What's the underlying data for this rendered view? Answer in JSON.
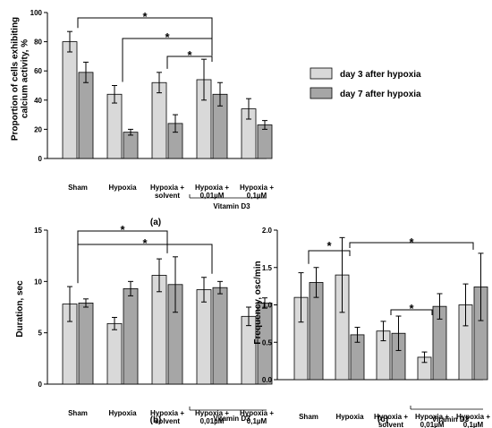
{
  "colors": {
    "day3": "#d9d9d9",
    "day7": "#a6a6a6",
    "axis": "#000000",
    "ink": "#000000"
  },
  "legend": {
    "items": [
      "day 3 after hypoxia",
      "day 7 after hypoxia"
    ]
  },
  "chart_data": [
    {
      "panel_label": "(a)",
      "type": "bar",
      "ylabel_lines": [
        "Proportion of cells exhibiting",
        "calcium activity, %"
      ],
      "ylim": [
        0,
        100
      ],
      "yticks": [
        "0",
        "20",
        "40",
        "60",
        "80",
        "100"
      ],
      "tick_values": [
        0,
        20,
        40,
        60,
        80,
        100
      ],
      "categories": [
        [
          "Sham"
        ],
        [
          "Hypoxia"
        ],
        [
          "Hypoxia +",
          "solvent"
        ],
        [
          "Hypoxia +",
          "0,01µM"
        ],
        [
          "Hypoxia +",
          "0,1µM"
        ]
      ],
      "group_label": "Vitamin D3",
      "series": [
        {
          "name": "day 3 after hypoxia",
          "values": [
            80,
            44,
            52,
            54,
            34
          ],
          "errors": [
            7,
            6,
            7,
            14,
            7
          ]
        },
        {
          "name": "day 7 after hypoxia",
          "values": [
            59,
            18,
            24,
            44,
            23
          ],
          "errors": [
            7,
            2,
            6,
            8,
            3
          ]
        }
      ],
      "significance": [
        {
          "from": 0,
          "to": 3,
          "label": "*"
        },
        {
          "from": 1,
          "to": 3,
          "label": "*"
        },
        {
          "from": 2,
          "to": 3,
          "label": "*"
        }
      ]
    },
    {
      "panel_label": "(b)",
      "type": "bar",
      "ylabel_lines": [
        "Duration, sec"
      ],
      "ylim": [
        0,
        15
      ],
      "yticks": [
        "0",
        "5",
        "10",
        "15"
      ],
      "tick_values": [
        0,
        5,
        10,
        15
      ],
      "categories": [
        [
          "Sham"
        ],
        [
          "Hypoxia"
        ],
        [
          "Hypoxia +",
          "solvent"
        ],
        [
          "Hypoxia +",
          "0,01µM"
        ],
        [
          "Hypoxia +",
          "0,1µM"
        ]
      ],
      "group_label": "Vitamin D3",
      "series": [
        {
          "name": "day 3 after hypoxia",
          "values": [
            7.8,
            5.9,
            10.6,
            9.2,
            6.6
          ],
          "errors": [
            1.7,
            0.6,
            1.6,
            1.2,
            0.9
          ]
        },
        {
          "name": "day 7 after hypoxia",
          "values": [
            7.9,
            9.3,
            9.7,
            9.4,
            7.9
          ],
          "errors": [
            0.4,
            0.7,
            2.7,
            0.6,
            0.5
          ]
        }
      ],
      "significance": [
        {
          "from": 0,
          "to": 2,
          "label": "*"
        },
        {
          "from": 0,
          "to": 3,
          "label": "*"
        }
      ]
    },
    {
      "panel_label": "(c)",
      "type": "bar",
      "ylabel_lines": [
        "Frequency, osc/min"
      ],
      "ylim": [
        0,
        2.0
      ],
      "yticks": [
        "0.0",
        "0.5",
        "1.0",
        "1.5",
        "2.0"
      ],
      "tick_values": [
        0,
        0.5,
        1.0,
        1.5,
        2.0
      ],
      "categories": [
        [
          "Sham"
        ],
        [
          "Hypoxia"
        ],
        [
          "Hypoxia +",
          "solvent"
        ],
        [
          "Hypoxia +",
          "0,01µM"
        ],
        [
          "Hypoxia +",
          "0,1µM"
        ]
      ],
      "group_label": "Vitamin D3",
      "series": [
        {
          "name": "day 3 after hypoxia",
          "values": [
            1.1,
            1.4,
            0.65,
            0.3,
            1.0
          ],
          "errors": [
            0.33,
            0.5,
            0.13,
            0.07,
            0.28
          ]
        },
        {
          "name": "day 7 after hypoxia",
          "values": [
            1.3,
            0.6,
            0.62,
            0.98,
            1.24
          ],
          "errors": [
            0.2,
            0.1,
            0.23,
            0.17,
            0.45
          ]
        }
      ],
      "significance": [
        {
          "from": 0,
          "to": 1,
          "label": "*"
        },
        {
          "from": 1,
          "to": 4,
          "label": "*"
        },
        {
          "from": 2,
          "to": 3,
          "label": "*"
        }
      ]
    }
  ]
}
